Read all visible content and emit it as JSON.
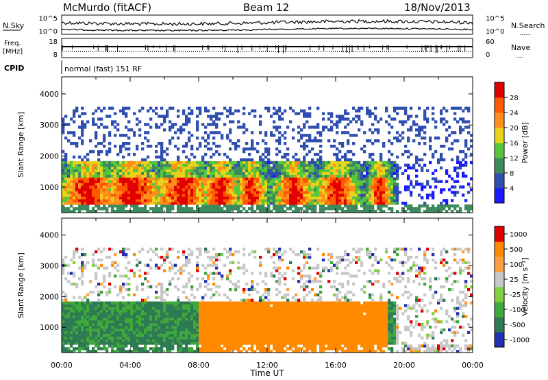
{
  "header": {
    "station": "McMurdo (fitACF)",
    "beam": "Beam 12",
    "date": "18/Nov/2013"
  },
  "labels": {
    "nsky": "N.Sky",
    "nsearch": "N.Search",
    "freq": "Freq.",
    "mhz": "[MHz]",
    "nave": "Nave",
    "cpid": "CPID",
    "cpid_value": "normal (fast) 151 RF",
    "dots": "......",
    "dots_short": "...."
  },
  "noise_axis": {
    "left_ticks": [
      "10^5",
      "10^0"
    ],
    "right_ticks": [
      "10^5",
      "10^0"
    ]
  },
  "freq_axis": {
    "left_ticks": [
      "18",
      "8"
    ],
    "right_ticks": [
      "60",
      "0"
    ]
  },
  "colors": {
    "power": [
      "#1a1aff",
      "#2f4fb0",
      "#3d8a5e",
      "#57c63a",
      "#e8d21a",
      "#ff8f1a",
      "#ff5a00",
      "#e00000"
    ],
    "velocity": [
      "#2030b0",
      "#2e7a52",
      "#3fa83a",
      "#80d040",
      "#c8c8c8",
      "#ffa040",
      "#ff8a00",
      "#e00000"
    ]
  },
  "chart_data": [
    {
      "type": "heatmap",
      "name": "power",
      "ylabel": "Slant Range [km]",
      "yticks": [
        1000,
        2000,
        3000,
        4000
      ],
      "ylim": [
        180,
        4550
      ],
      "xlim": [
        0,
        24
      ],
      "xticks": [
        "00:00",
        "04:00",
        "08:00",
        "12:00",
        "16:00",
        "20:00",
        "00:00"
      ],
      "colorbar": {
        "label": "Power [dB]",
        "range": [
          0,
          32
        ],
        "ticks": [
          "4",
          "8",
          "12",
          "16",
          "20",
          "24",
          "28"
        ]
      }
    },
    {
      "type": "heatmap",
      "name": "velocity",
      "ylabel": "Slant Range [km]",
      "yticks": [
        1000,
        2000,
        3000,
        4000
      ],
      "ylim": [
        180,
        4550
      ],
      "xlim": [
        0,
        24
      ],
      "xlabel": "Time UT",
      "xticks": [
        "00:00",
        "04:00",
        "08:00",
        "12:00",
        "16:00",
        "20:00",
        "00:00"
      ],
      "colorbar": {
        "label": "Velocity [m s⁻¹]",
        "ticks": [
          "1000",
          "500",
          "100",
          "25",
          "-25",
          "-100",
          "-500",
          "-1000"
        ]
      }
    }
  ]
}
